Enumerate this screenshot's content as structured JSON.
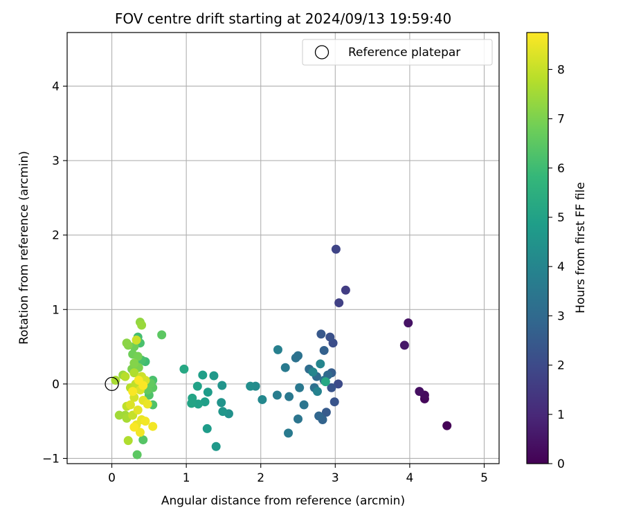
{
  "chart_data": {
    "type": "scatter",
    "title": "FOV centre drift starting at 2024/09/13 19:59:40",
    "xlabel": "Angular distance from reference (arcmin)",
    "ylabel": "Rotation from reference (arcmin)",
    "xlim": [
      -0.6,
      5.2
    ],
    "ylim": [
      -1.07,
      4.72
    ],
    "xticks": [
      0,
      1,
      2,
      3,
      4,
      5
    ],
    "yticks": [
      -1,
      0,
      1,
      2,
      3,
      4
    ],
    "grid": true,
    "legend": {
      "placement": "top-right",
      "entries": [
        {
          "label": "Reference platepar",
          "marker": "open-circle",
          "x": 0,
          "y": 0
        }
      ]
    },
    "colorbar": {
      "label": "Hours from first FF file",
      "range": [
        0,
        8.75
      ],
      "ticks": [
        0,
        1,
        2,
        3,
        4,
        5,
        6,
        7,
        8
      ],
      "colormap": "viridis"
    },
    "colormap_stops": [
      "#440154",
      "#482878",
      "#3e4989",
      "#31688e",
      "#26828e",
      "#1f9e89",
      "#35b779",
      "#6ece58",
      "#b5de2b",
      "#fde725"
    ],
    "points": [
      {
        "x": 4.5,
        "y": -0.56,
        "c": 0.05
      },
      {
        "x": 4.2,
        "y": -0.2,
        "c": 0.15
      },
      {
        "x": 4.2,
        "y": -0.15,
        "c": 0.25
      },
      {
        "x": 4.13,
        "y": -0.1,
        "c": 0.35
      },
      {
        "x": 3.98,
        "y": 0.82,
        "c": 0.45
      },
      {
        "x": 3.93,
        "y": 0.52,
        "c": 0.55
      },
      {
        "x": 3.14,
        "y": 1.26,
        "c": 1.6
      },
      {
        "x": 3.05,
        "y": 1.09,
        "c": 1.7
      },
      {
        "x": 3.01,
        "y": 1.81,
        "c": 1.8
      },
      {
        "x": 3.04,
        "y": 0.0,
        "c": 2.0
      },
      {
        "x": 2.97,
        "y": 0.55,
        "c": 2.1
      },
      {
        "x": 2.93,
        "y": 0.63,
        "c": 2.2
      },
      {
        "x": 2.95,
        "y": -0.05,
        "c": 2.3
      },
      {
        "x": 2.99,
        "y": -0.24,
        "c": 2.3
      },
      {
        "x": 2.81,
        "y": 0.67,
        "c": 2.4
      },
      {
        "x": 2.88,
        "y": -0.38,
        "c": 2.5
      },
      {
        "x": 2.95,
        "y": 0.15,
        "c": 2.6
      },
      {
        "x": 2.85,
        "y": 0.45,
        "c": 2.7
      },
      {
        "x": 2.83,
        "y": -0.48,
        "c": 2.8
      },
      {
        "x": 2.78,
        "y": -0.43,
        "c": 2.9
      },
      {
        "x": 2.75,
        "y": 0.1,
        "c": 3.0
      },
      {
        "x": 2.9,
        "y": 0.12,
        "c": 3.0
      },
      {
        "x": 2.65,
        "y": 0.2,
        "c": 3.1
      },
      {
        "x": 2.85,
        "y": 0.05,
        "c": 3.2
      },
      {
        "x": 2.72,
        "y": -0.05,
        "c": 3.2
      },
      {
        "x": 2.5,
        "y": 0.38,
        "c": 3.3
      },
      {
        "x": 2.47,
        "y": 0.35,
        "c": 3.3
      },
      {
        "x": 2.5,
        "y": -0.47,
        "c": 3.4
      },
      {
        "x": 2.58,
        "y": -0.28,
        "c": 3.4
      },
      {
        "x": 2.52,
        "y": -0.05,
        "c": 3.5
      },
      {
        "x": 2.38,
        "y": -0.17,
        "c": 3.5
      },
      {
        "x": 2.33,
        "y": 0.22,
        "c": 3.6
      },
      {
        "x": 2.37,
        "y": -0.66,
        "c": 3.6
      },
      {
        "x": 2.22,
        "y": -0.15,
        "c": 3.7
      },
      {
        "x": 2.23,
        "y": 0.46,
        "c": 3.8
      },
      {
        "x": 2.76,
        "y": -0.1,
        "c": 3.9
      },
      {
        "x": 2.8,
        "y": 0.27,
        "c": 4.0
      },
      {
        "x": 2.7,
        "y": 0.16,
        "c": 4.0
      },
      {
        "x": 2.02,
        "y": -0.21,
        "c": 4.1
      },
      {
        "x": 1.93,
        "y": -0.03,
        "c": 4.2
      },
      {
        "x": 1.86,
        "y": -0.03,
        "c": 4.3
      },
      {
        "x": 1.57,
        "y": -0.4,
        "c": 4.4
      },
      {
        "x": 1.48,
        "y": -0.02,
        "c": 4.5
      },
      {
        "x": 1.47,
        "y": -0.25,
        "c": 4.5
      },
      {
        "x": 1.49,
        "y": -0.37,
        "c": 4.6
      },
      {
        "x": 1.4,
        "y": -0.84,
        "c": 4.7
      },
      {
        "x": 1.37,
        "y": 0.11,
        "c": 4.7
      },
      {
        "x": 1.29,
        "y": -0.11,
        "c": 4.8
      },
      {
        "x": 1.28,
        "y": -0.6,
        "c": 4.8
      },
      {
        "x": 1.22,
        "y": 0.12,
        "c": 4.9
      },
      {
        "x": 1.25,
        "y": -0.24,
        "c": 4.9
      },
      {
        "x": 1.15,
        "y": -0.03,
        "c": 5.0
      },
      {
        "x": 1.16,
        "y": -0.27,
        "c": 5.0
      },
      {
        "x": 1.08,
        "y": -0.19,
        "c": 5.1
      },
      {
        "x": 1.07,
        "y": -0.26,
        "c": 5.1
      },
      {
        "x": 0.97,
        "y": 0.2,
        "c": 5.2
      },
      {
        "x": 2.87,
        "y": 0.03,
        "c": 5.2
      },
      {
        "x": 0.45,
        "y": 0.3,
        "c": 6.0
      },
      {
        "x": 0.35,
        "y": 0.63,
        "c": 6.1
      },
      {
        "x": 0.38,
        "y": 0.55,
        "c": 6.2
      },
      {
        "x": 0.4,
        "y": 0.32,
        "c": 6.2
      },
      {
        "x": 0.55,
        "y": 0.05,
        "c": 6.2
      },
      {
        "x": 0.55,
        "y": -0.28,
        "c": 6.3
      },
      {
        "x": 0.5,
        "y": -0.15,
        "c": 6.3
      },
      {
        "x": 0.42,
        "y": -0.75,
        "c": 6.4
      },
      {
        "x": 0.34,
        "y": -0.95,
        "c": 6.5
      },
      {
        "x": 0.67,
        "y": 0.66,
        "c": 6.5
      },
      {
        "x": 0.55,
        "y": -0.05,
        "c": 6.5
      },
      {
        "x": 0.48,
        "y": -0.08,
        "c": 6.6
      },
      {
        "x": 0.52,
        "y": 0.01,
        "c": 6.6
      },
      {
        "x": 0.3,
        "y": 0.5,
        "c": 6.8
      },
      {
        "x": 0.28,
        "y": 0.4,
        "c": 6.8
      },
      {
        "x": 0.35,
        "y": 0.37,
        "c": 6.9
      },
      {
        "x": 0.36,
        "y": 0.22,
        "c": 7.0
      },
      {
        "x": 0.27,
        "y": 0.2,
        "c": 7.0
      },
      {
        "x": 0.3,
        "y": 0.28,
        "c": 7.1
      },
      {
        "x": 0.22,
        "y": 0.52,
        "c": 7.1
      },
      {
        "x": 0.2,
        "y": 0.55,
        "c": 7.2
      },
      {
        "x": 0.38,
        "y": 0.83,
        "c": 7.3
      },
      {
        "x": 0.4,
        "y": 0.79,
        "c": 7.4
      },
      {
        "x": 0.15,
        "y": 0.12,
        "c": 7.4
      },
      {
        "x": 0.1,
        "y": -0.42,
        "c": 7.5
      },
      {
        "x": 0.18,
        "y": -0.42,
        "c": 7.5
      },
      {
        "x": 0.05,
        "y": 0.05,
        "c": 7.6
      },
      {
        "x": 0.2,
        "y": -0.46,
        "c": 7.6
      },
      {
        "x": 0.22,
        "y": -0.76,
        "c": 7.7
      },
      {
        "x": 0.3,
        "y": 0.15,
        "c": 7.7
      },
      {
        "x": 0.18,
        "y": 0.1,
        "c": 7.8
      },
      {
        "x": 0.25,
        "y": -0.05,
        "c": 7.8
      },
      {
        "x": 0.32,
        "y": 0.0,
        "c": 7.9
      },
      {
        "x": 0.2,
        "y": -0.3,
        "c": 7.9
      },
      {
        "x": 0.28,
        "y": -0.42,
        "c": 8.0
      },
      {
        "x": 0.33,
        "y": 0.59,
        "c": 8.1
      },
      {
        "x": 0.4,
        "y": 0.1,
        "c": 8.1
      },
      {
        "x": 0.45,
        "y": 0.05,
        "c": 8.2
      },
      {
        "x": 0.3,
        "y": -0.18,
        "c": 8.2
      },
      {
        "x": 0.38,
        "y": -0.08,
        "c": 8.3
      },
      {
        "x": 0.25,
        "y": -0.28,
        "c": 8.3
      },
      {
        "x": 0.42,
        "y": -0.22,
        "c": 8.4
      },
      {
        "x": 0.35,
        "y": -0.35,
        "c": 8.4
      },
      {
        "x": 0.48,
        "y": -0.27,
        "c": 8.5
      },
      {
        "x": 0.4,
        "y": -0.48,
        "c": 8.5
      },
      {
        "x": 0.33,
        "y": -0.55,
        "c": 8.5
      },
      {
        "x": 0.45,
        "y": -0.5,
        "c": 8.6
      },
      {
        "x": 0.55,
        "y": -0.57,
        "c": 8.6
      },
      {
        "x": 0.38,
        "y": -0.65,
        "c": 8.6
      },
      {
        "x": 0.3,
        "y": -0.58,
        "c": 8.7
      },
      {
        "x": 0.42,
        "y": -0.02,
        "c": 8.7
      },
      {
        "x": 0.36,
        "y": 0.05,
        "c": 8.7
      },
      {
        "x": 0.28,
        "y": -0.1,
        "c": 8.7
      }
    ]
  }
}
